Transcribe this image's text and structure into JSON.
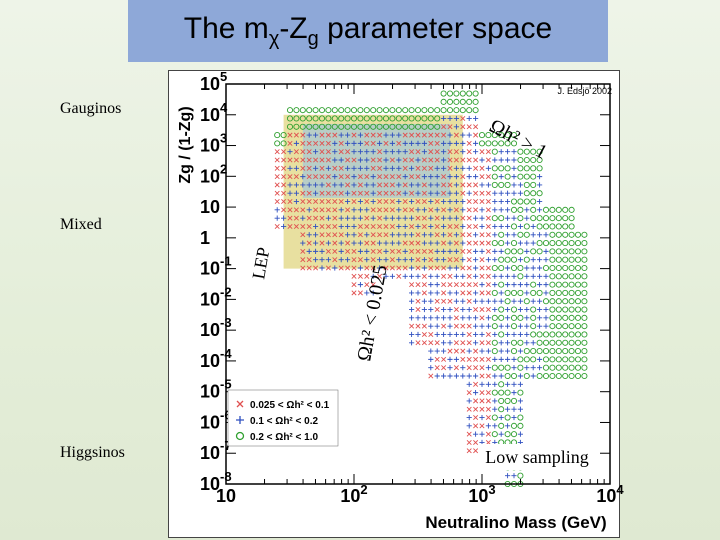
{
  "page": {
    "title_main": "The m",
    "title_sub1": "χ",
    "title_mid": "-Z",
    "title_sub2": "g",
    "title_tail": " parameter space"
  },
  "side_labels": {
    "gauginos": "Gauginos",
    "mixed": "Mixed",
    "higgsinos": "Higgsinos"
  },
  "chart_data": {
    "type": "scatter",
    "title": "",
    "credit": "J. Edsjö 2002",
    "xlabel": "Neutralino Mass (GeV)",
    "ylabel": "Zg / (1-Zg)",
    "xscale": "log",
    "yscale": "log",
    "xlim": [
      10,
      10000
    ],
    "ylim": [
      1e-08,
      100000.0
    ],
    "x_ticks": [
      {
        "base": "10",
        "exp": "",
        "value": 10
      },
      {
        "base": "10",
        "exp": "2",
        "value": 100
      },
      {
        "base": "10",
        "exp": "3",
        "value": 1000
      },
      {
        "base": "10",
        "exp": "4",
        "value": 10000
      }
    ],
    "y_ticks": [
      {
        "base": "10",
        "exp": "5",
        "value": 5
      },
      {
        "base": "10",
        "exp": "4",
        "value": 4
      },
      {
        "base": "10",
        "exp": "3",
        "value": 3
      },
      {
        "base": "10",
        "exp": "2",
        "value": 2
      },
      {
        "base": "10",
        "exp": "",
        "value": 1
      },
      {
        "base": "1",
        "exp": "",
        "value": 0
      },
      {
        "base": "10",
        "exp": "-1",
        "value": -1
      },
      {
        "base": "10",
        "exp": "-2",
        "value": -2
      },
      {
        "base": "10",
        "exp": "-3",
        "value": -3
      },
      {
        "base": "10",
        "exp": "-4",
        "value": -4
      },
      {
        "base": "10",
        "exp": "-5",
        "value": -5
      },
      {
        "base": "10",
        "exp": "-6",
        "value": -6
      },
      {
        "base": "10",
        "exp": "-7",
        "value": -7
      },
      {
        "base": "10",
        "exp": "-8",
        "value": -8
      }
    ],
    "series": [
      {
        "name": "0.025 < Ωh² < 0.1",
        "marker": "x",
        "color": "#e05050"
      },
      {
        "name": "0.1 < Ωh² < 0.2",
        "marker": "+",
        "color": "#3050c0"
      },
      {
        "name": "0.2 < Ωh² < 1.0",
        "marker": "o",
        "color": "#30a030"
      }
    ],
    "legend": {
      "position": "bottom-left",
      "entries": [
        "0.025 < Ωh² < 0.1",
        "0.1 < Ωh² < 0.2",
        "0.2 < Ωh² < 1.0"
      ]
    },
    "annotations": {
      "omega_high": "Ωh² > 1",
      "omega_low": "Ωh² < 0.025",
      "lep": "LEP",
      "low_sampling": "Low sampling"
    },
    "regions": {
      "shaded_band_log_mass": [
        1.45,
        2.85
      ],
      "shaded_band_log_zratio": [
        -1,
        4
      ],
      "shaded_color": "#e8e0a0",
      "shaded_overlay_color": "#90c0e8"
    }
  }
}
